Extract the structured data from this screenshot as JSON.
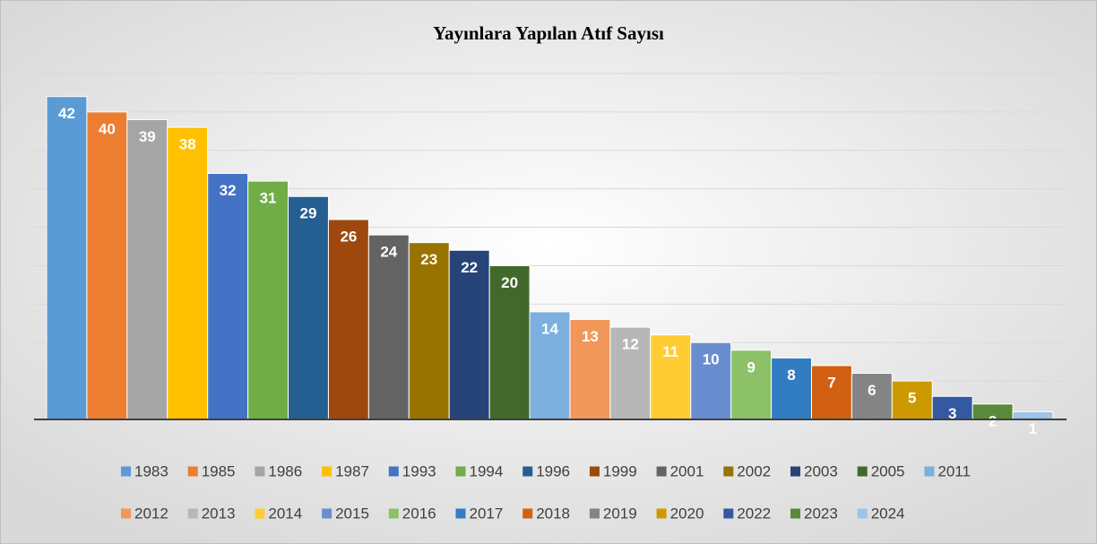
{
  "chart_data": {
    "type": "bar",
    "title": "Yayınlara Yapılan Atıf Sayısı",
    "categories": [
      "1983",
      "1985",
      "1986",
      "1987",
      "1993",
      "1994",
      "1996",
      "1999",
      "2001",
      "2002",
      "2003",
      "2005",
      "2011",
      "2012",
      "2013",
      "2014",
      "2015",
      "2016",
      "2017",
      "2018",
      "2019",
      "2020",
      "2022",
      "2023",
      "2024"
    ],
    "values": [
      42,
      40,
      39,
      38,
      32,
      31,
      29,
      26,
      24,
      23,
      22,
      20,
      14,
      13,
      12,
      11,
      10,
      9,
      8,
      7,
      6,
      5,
      3,
      2,
      1
    ],
    "colors": [
      "#5b9bd5",
      "#ed7d31",
      "#a5a5a5",
      "#ffc000",
      "#4472c4",
      "#70ad47",
      "#255e91",
      "#9e480e",
      "#636363",
      "#997300",
      "#264478",
      "#43682b",
      "#7cafdd",
      "#f1975a",
      "#b7b7b7",
      "#ffcd33",
      "#698ed0",
      "#8cc168",
      "#327dc2",
      "#d26012",
      "#848484",
      "#cc9a00",
      "#335aa1",
      "#5a8a39",
      "#9dc3e6"
    ],
    "ylim": [
      0,
      45
    ],
    "yticks": [
      0,
      5,
      10,
      15,
      20,
      25,
      30,
      35,
      40,
      45
    ],
    "grid": true,
    "legend": "bottom"
  }
}
